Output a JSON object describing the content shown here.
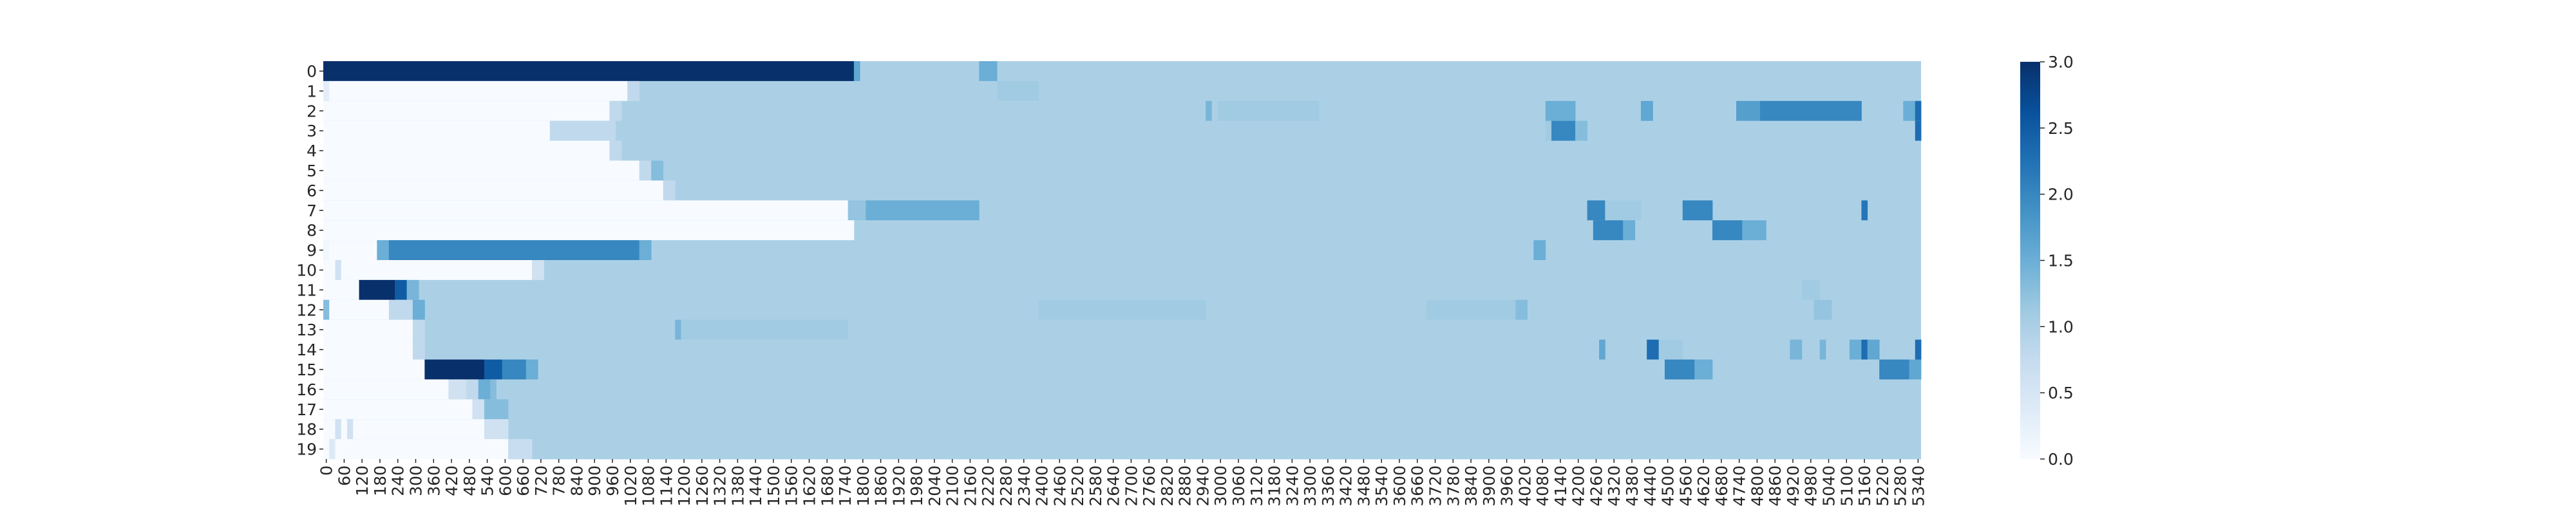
{
  "chart_data": {
    "type": "heatmap",
    "title": "",
    "xlabel": "",
    "ylabel": "",
    "colormap": "Blues",
    "color_low": "#f7fbff",
    "color_high": "#08306b",
    "vmin": 0,
    "vmax": 3,
    "colorbar_ticks": [
      "0.0",
      "0.5",
      "1.0",
      "1.5",
      "2.0",
      "2.5",
      "3.0"
    ],
    "y_labels": [
      "0",
      "1",
      "2",
      "3",
      "4",
      "5",
      "6",
      "7",
      "8",
      "9",
      "10",
      "11",
      "12",
      "13",
      "14",
      "15",
      "16",
      "17",
      "18",
      "19"
    ],
    "x_step": 20,
    "x_max": 5360,
    "x_tick_every": 60,
    "default_value": 1.0,
    "rows": [
      [
        [
          0,
          1780,
          3.0
        ],
        [
          1780,
          1800,
          1.6
        ],
        [
          2200,
          2260,
          1.5
        ]
      ],
      [
        [
          0,
          20,
          0.3
        ],
        [
          20,
          1020,
          0.0
        ],
        [
          1020,
          1060,
          0.8
        ],
        [
          2260,
          2400,
          1.1
        ]
      ],
      [
        [
          0,
          960,
          0.0
        ],
        [
          960,
          1000,
          0.8
        ],
        [
          2960,
          2980,
          1.4
        ],
        [
          3000,
          3340,
          1.1
        ],
        [
          4100,
          4200,
          1.5
        ],
        [
          4420,
          4460,
          1.6
        ],
        [
          4740,
          4820,
          1.7
        ],
        [
          4820,
          5160,
          2.0
        ],
        [
          5300,
          5340,
          1.5
        ],
        [
          5340,
          5360,
          2.3
        ]
      ],
      [
        [
          0,
          760,
          0.0
        ],
        [
          760,
          980,
          0.8
        ],
        [
          4100,
          4120,
          1.1
        ],
        [
          4120,
          4200,
          2.0
        ],
        [
          4200,
          4240,
          1.3
        ],
        [
          5340,
          5360,
          2.3
        ]
      ],
      [
        [
          0,
          960,
          0.0
        ],
        [
          960,
          1000,
          0.8
        ]
      ],
      [
        [
          0,
          1060,
          0.0
        ],
        [
          1060,
          1100,
          0.8
        ],
        [
          1100,
          1140,
          1.3
        ]
      ],
      [
        [
          0,
          1140,
          0.0
        ],
        [
          1140,
          1180,
          0.8
        ]
      ],
      [
        [
          0,
          1760,
          0.0
        ],
        [
          1760,
          1820,
          1.2
        ],
        [
          1820,
          2200,
          1.5
        ],
        [
          4240,
          4300,
          2.0
        ],
        [
          4300,
          4420,
          1.1
        ],
        [
          4560,
          4660,
          2.0
        ],
        [
          5160,
          5180,
          2.2
        ]
      ],
      [
        [
          0,
          1780,
          0.0
        ],
        [
          4260,
          4360,
          2.0
        ],
        [
          4360,
          4400,
          1.5
        ],
        [
          4660,
          4760,
          2.0
        ],
        [
          4760,
          4840,
          1.5
        ]
      ],
      [
        [
          0,
          20,
          0.1
        ],
        [
          20,
          180,
          0.0
        ],
        [
          180,
          220,
          1.5
        ],
        [
          220,
          1060,
          2.0
        ],
        [
          1060,
          1100,
          1.5
        ],
        [
          4060,
          4100,
          1.5
        ]
      ],
      [
        [
          0,
          40,
          0.0
        ],
        [
          40,
          60,
          0.6
        ],
        [
          60,
          700,
          0.0
        ],
        [
          700,
          740,
          0.6
        ]
      ],
      [
        [
          0,
          120,
          0.0
        ],
        [
          120,
          240,
          3.0
        ],
        [
          240,
          280,
          2.5
        ],
        [
          280,
          320,
          1.4
        ],
        [
          4960,
          5020,
          1.1
        ]
      ],
      [
        [
          0,
          20,
          1.3
        ],
        [
          20,
          220,
          0.0
        ],
        [
          220,
          300,
          0.8
        ],
        [
          300,
          340,
          1.5
        ],
        [
          2400,
          2960,
          1.1
        ],
        [
          3700,
          4000,
          1.1
        ],
        [
          4000,
          4040,
          1.3
        ],
        [
          4040,
          4100,
          1.0
        ],
        [
          5000,
          5060,
          1.2
        ]
      ],
      [
        [
          0,
          300,
          0.0
        ],
        [
          300,
          340,
          0.8
        ],
        [
          1180,
          1200,
          1.4
        ],
        [
          1200,
          1760,
          1.1
        ]
      ],
      [
        [
          0,
          300,
          0.0
        ],
        [
          300,
          340,
          0.8
        ],
        [
          4280,
          4300,
          1.6
        ],
        [
          4440,
          4480,
          2.3
        ],
        [
          4480,
          4560,
          1.1
        ],
        [
          4920,
          4960,
          1.4
        ],
        [
          5020,
          5040,
          1.4
        ],
        [
          5120,
          5160,
          1.5
        ],
        [
          5160,
          5180,
          2.3
        ],
        [
          5180,
          5220,
          1.6
        ],
        [
          5340,
          5360,
          2.3
        ]
      ],
      [
        [
          0,
          340,
          0.0
        ],
        [
          340,
          540,
          3.0
        ],
        [
          540,
          600,
          2.5
        ],
        [
          600,
          680,
          2.0
        ],
        [
          680,
          720,
          1.5
        ],
        [
          4500,
          4600,
          2.0
        ],
        [
          4600,
          4660,
          1.5
        ],
        [
          5220,
          5320,
          2.0
        ],
        [
          5320,
          5360,
          1.6
        ]
      ],
      [
        [
          0,
          420,
          0.0
        ],
        [
          420,
          480,
          0.6
        ],
        [
          480,
          520,
          0.8
        ],
        [
          520,
          560,
          1.5
        ],
        [
          560,
          580,
          1.3
        ]
      ],
      [
        [
          0,
          500,
          0.0
        ],
        [
          500,
          540,
          0.6
        ],
        [
          540,
          620,
          1.3
        ]
      ],
      [
        [
          0,
          40,
          0.0
        ],
        [
          40,
          60,
          0.6
        ],
        [
          60,
          80,
          0.0
        ],
        [
          80,
          100,
          0.6
        ],
        [
          100,
          540,
          0.0
        ],
        [
          540,
          620,
          0.6
        ]
      ],
      [
        [
          0,
          20,
          0.0
        ],
        [
          20,
          40,
          0.4
        ],
        [
          40,
          620,
          0.0
        ],
        [
          620,
          700,
          0.7
        ]
      ]
    ]
  }
}
